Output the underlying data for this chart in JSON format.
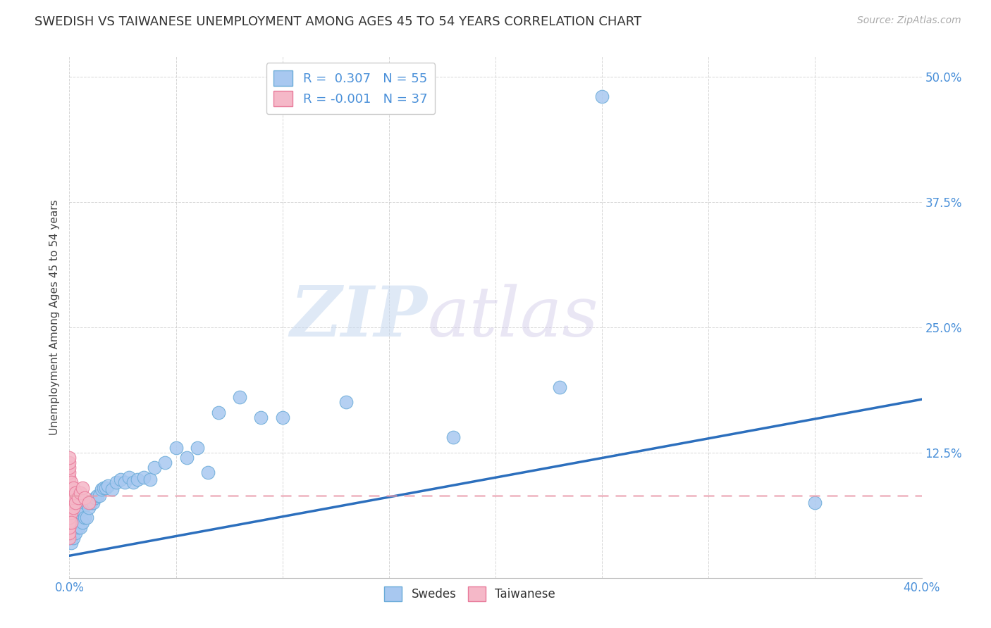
{
  "title": "SWEDISH VS TAIWANESE UNEMPLOYMENT AMONG AGES 45 TO 54 YEARS CORRELATION CHART",
  "source": "Source: ZipAtlas.com",
  "ylabel": "Unemployment Among Ages 45 to 54 years",
  "xlim": [
    0.0,
    0.4
  ],
  "ylim": [
    0.0,
    0.52
  ],
  "xticks": [
    0.0,
    0.05,
    0.1,
    0.15,
    0.2,
    0.25,
    0.3,
    0.35,
    0.4
  ],
  "xticklabels": [
    "0.0%",
    "",
    "",
    "",
    "",
    "",
    "",
    "",
    "40.0%"
  ],
  "yticks": [
    0.0,
    0.125,
    0.25,
    0.375,
    0.5
  ],
  "yticklabels": [
    "",
    "12.5%",
    "25.0%",
    "37.5%",
    "50.0%"
  ],
  "swedes_color": "#a8c8f0",
  "swedes_edge": "#6aabd8",
  "taiwanese_color": "#f5b8c8",
  "taiwanese_edge": "#e87a9a",
  "trend_swedes_color": "#2c6fbd",
  "trend_taiwanese_color": "#e89aaa",
  "background_color": "#ffffff",
  "watermark_zip": "ZIP",
  "watermark_atlas": "atlas",
  "grid_color": "#cccccc",
  "title_fontsize": 13,
  "axis_label_fontsize": 11,
  "tick_fontsize": 12,
  "swedes_x": [
    0.0,
    0.0,
    0.001,
    0.001,
    0.001,
    0.002,
    0.002,
    0.002,
    0.003,
    0.003,
    0.003,
    0.004,
    0.004,
    0.005,
    0.005,
    0.006,
    0.006,
    0.007,
    0.007,
    0.008,
    0.008,
    0.009,
    0.01,
    0.011,
    0.012,
    0.013,
    0.014,
    0.015,
    0.016,
    0.017,
    0.018,
    0.02,
    0.022,
    0.024,
    0.026,
    0.028,
    0.03,
    0.032,
    0.035,
    0.038,
    0.04,
    0.045,
    0.05,
    0.055,
    0.06,
    0.065,
    0.07,
    0.08,
    0.09,
    0.1,
    0.13,
    0.18,
    0.23,
    0.25,
    0.35
  ],
  "swedes_y": [
    0.04,
    0.06,
    0.035,
    0.055,
    0.07,
    0.04,
    0.055,
    0.075,
    0.045,
    0.06,
    0.07,
    0.05,
    0.065,
    0.05,
    0.068,
    0.055,
    0.068,
    0.06,
    0.075,
    0.06,
    0.075,
    0.07,
    0.075,
    0.075,
    0.08,
    0.082,
    0.082,
    0.088,
    0.09,
    0.09,
    0.092,
    0.088,
    0.095,
    0.098,
    0.095,
    0.1,
    0.095,
    0.098,
    0.1,
    0.098,
    0.11,
    0.115,
    0.13,
    0.12,
    0.13,
    0.105,
    0.165,
    0.18,
    0.16,
    0.16,
    0.175,
    0.14,
    0.19,
    0.48,
    0.075
  ],
  "taiwanese_x": [
    0.0,
    0.0,
    0.0,
    0.0,
    0.0,
    0.0,
    0.0,
    0.0,
    0.0,
    0.0,
    0.0,
    0.0,
    0.0,
    0.0,
    0.0,
    0.0,
    0.0,
    0.0,
    0.0,
    0.0,
    0.0,
    0.0,
    0.001,
    0.001,
    0.001,
    0.001,
    0.001,
    0.002,
    0.002,
    0.002,
    0.003,
    0.003,
    0.004,
    0.005,
    0.006,
    0.007,
    0.009
  ],
  "taiwanese_y": [
    0.05,
    0.055,
    0.06,
    0.065,
    0.07,
    0.075,
    0.08,
    0.085,
    0.09,
    0.095,
    0.1,
    0.105,
    0.11,
    0.115,
    0.12,
    0.04,
    0.045,
    0.05,
    0.055,
    0.06,
    0.065,
    0.07,
    0.065,
    0.075,
    0.085,
    0.095,
    0.055,
    0.07,
    0.08,
    0.09,
    0.075,
    0.085,
    0.08,
    0.085,
    0.09,
    0.08,
    0.075
  ],
  "swedes_trend_start_y": 0.022,
  "swedes_trend_end_y": 0.178,
  "taiwanese_trend_y": 0.082
}
